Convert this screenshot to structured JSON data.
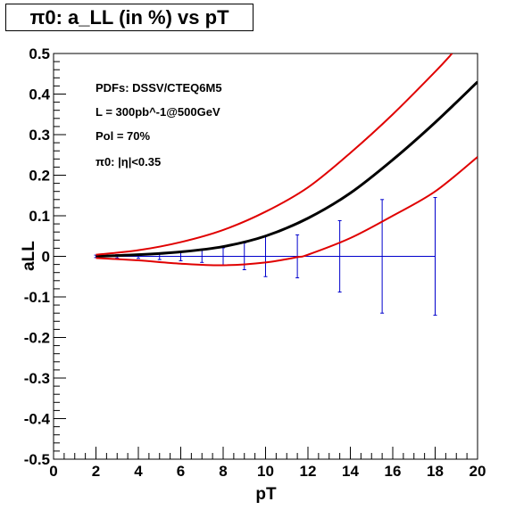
{
  "chart_data": {
    "type": "line",
    "title": "π0: a_LL (in %) vs pT",
    "xlabel": "pT",
    "ylabel": "aLL",
    "xlim": [
      0,
      20
    ],
    "ylim": [
      -0.5,
      0.5
    ],
    "x_ticks": [
      "0",
      "2",
      "4",
      "6",
      "8",
      "10",
      "12",
      "14",
      "16",
      "18",
      "20"
    ],
    "y_ticks": [
      "-0.5",
      "-0.4",
      "-0.3",
      "-0.2",
      "-0.1",
      "0",
      "0.1",
      "0.2",
      "0.3",
      "0.4",
      "0.5"
    ],
    "annotations": [
      "PDFs: DSSV/CTEQ6M5",
      "L = 300pb^-1@500GeV",
      "Pol = 70%",
      "π0: |η|<0.35"
    ],
    "series": [
      {
        "color": "#000000",
        "x": [
          2,
          4,
          6,
          8,
          10,
          12,
          14,
          16,
          18,
          20
        ],
        "values": [
          0.0,
          0.004,
          0.011,
          0.024,
          0.05,
          0.094,
          0.156,
          0.238,
          0.33,
          0.43
        ]
      },
      {
        "color": "#e00000",
        "x": [
          2,
          4,
          6,
          8,
          10,
          12,
          14,
          16,
          18,
          18.8
        ],
        "values": [
          0.004,
          0.015,
          0.035,
          0.065,
          0.11,
          0.17,
          0.255,
          0.35,
          0.455,
          0.5
        ]
      },
      {
        "color": "#e00000",
        "x": [
          2,
          4,
          6,
          8,
          10,
          11.5,
          12,
          14,
          16,
          18,
          20
        ],
        "values": [
          -0.004,
          -0.01,
          -0.018,
          -0.022,
          -0.015,
          -0.002,
          0.004,
          0.045,
          0.1,
          0.16,
          0.245
        ]
      }
    ],
    "error_bars": {
      "color": "#0000cc",
      "x": [
        2,
        3,
        4,
        5,
        6,
        7,
        8,
        9,
        10,
        11.5,
        13.5,
        15.5,
        18
      ],
      "values": [
        0,
        0,
        0,
        0,
        0,
        0,
        0,
        0,
        0,
        0,
        0,
        0,
        0
      ],
      "errors": [
        0.003,
        0.004,
        0.005,
        0.008,
        0.011,
        0.015,
        0.021,
        0.033,
        0.05,
        0.053,
        0.088,
        0.14,
        0.145
      ]
    },
    "error_line_x_range": [
      2,
      18
    ],
    "grid": false
  }
}
